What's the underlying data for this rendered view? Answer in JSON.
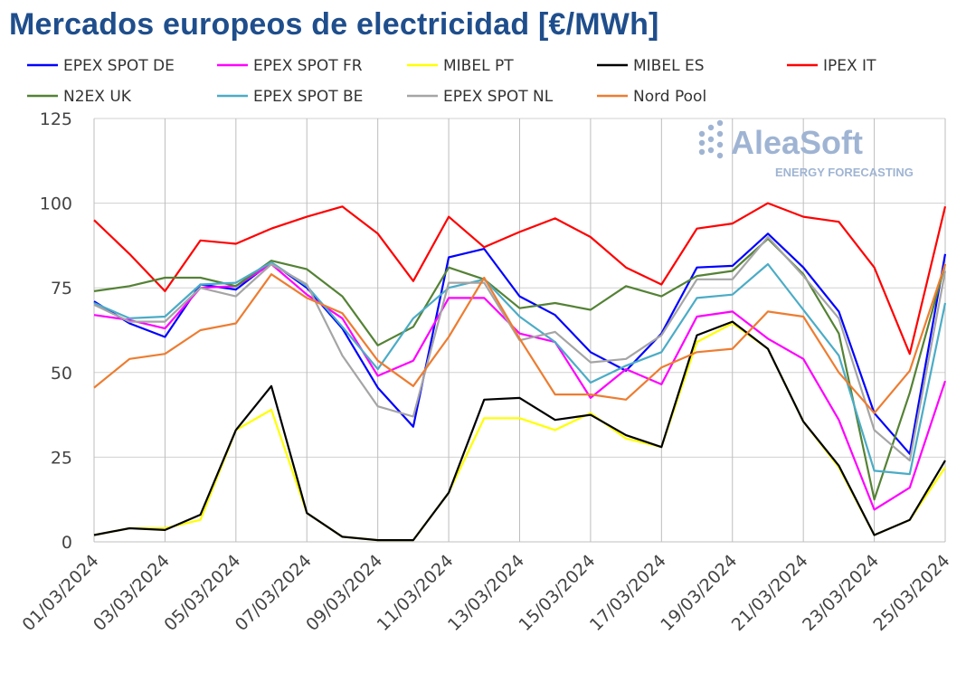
{
  "title": "Mercados europeos de electricidad [€/MWh]",
  "logo": {
    "name": "AleaSoft",
    "tagline": "ENERGY FORECASTING",
    "color": "#9fb4d3"
  },
  "chart_data": {
    "type": "line",
    "title": "Mercados europeos de electricidad [€/MWh]",
    "xlabel": "",
    "ylabel": "",
    "ylim": [
      0,
      125
    ],
    "yticks": [
      0,
      25,
      50,
      75,
      100,
      125
    ],
    "grid": true,
    "legend": "top",
    "x": [
      "01/03/2024",
      "02/03/2024",
      "03/03/2024",
      "04/03/2024",
      "05/03/2024",
      "06/03/2024",
      "07/03/2024",
      "08/03/2024",
      "09/03/2024",
      "10/03/2024",
      "11/03/2024",
      "12/03/2024",
      "13/03/2024",
      "14/03/2024",
      "15/03/2024",
      "16/03/2024",
      "17/03/2024",
      "18/03/2024",
      "19/03/2024",
      "20/03/2024",
      "21/03/2024",
      "22/03/2024",
      "23/03/2024",
      "24/03/2024",
      "25/03/2024"
    ],
    "xticks": [
      "01/03/2024",
      "03/03/2024",
      "05/03/2024",
      "07/03/2024",
      "09/03/2024",
      "11/03/2024",
      "13/03/2024",
      "15/03/2024",
      "17/03/2024",
      "19/03/2024",
      "21/03/2024",
      "23/03/2024",
      "25/03/2024"
    ],
    "series": [
      {
        "name": "EPEX SPOT DE",
        "color": "#0000ff",
        "values": [
          71,
          64.5,
          60.5,
          76,
          74.5,
          82.5,
          75,
          63,
          45.5,
          34,
          84,
          86.5,
          72.5,
          67,
          56,
          50.5,
          61.5,
          81,
          81.5,
          91,
          81,
          68,
          38,
          26,
          85
        ]
      },
      {
        "name": "EPEX SPOT FR",
        "color": "#ff00ff",
        "values": [
          67,
          65.5,
          63,
          75,
          75.5,
          82,
          73,
          66,
          49,
          53.5,
          72,
          72,
          61.5,
          59,
          42.5,
          51,
          46.5,
          66.5,
          68,
          60,
          54,
          36,
          9.5,
          16,
          47.5
        ]
      },
      {
        "name": "MIBEL PT",
        "color": "#ffff00",
        "values": [
          2,
          4,
          4,
          6.5,
          33,
          39,
          8.5,
          1.5,
          0.5,
          0.5,
          14.5,
          36.5,
          36.5,
          33,
          38,
          30.5,
          28,
          59,
          64.5,
          57,
          35.5,
          22,
          2,
          6.5,
          22
        ]
      },
      {
        "name": "MIBEL ES",
        "color": "#000000",
        "values": [
          2,
          4,
          3.5,
          8,
          33,
          46,
          8.5,
          1.5,
          0.5,
          0.5,
          14.5,
          42,
          42.5,
          36,
          37.5,
          31.5,
          28,
          61,
          65,
          57,
          35.5,
          22.5,
          2,
          6.5,
          24
        ]
      },
      {
        "name": "IPEX IT",
        "color": "#ff0000",
        "values": [
          95,
          85,
          74,
          89,
          88,
          92.5,
          96,
          99,
          91,
          77,
          96,
          87,
          91.5,
          95.5,
          90,
          81,
          76,
          92.5,
          94,
          100,
          96,
          94.5,
          81,
          55.5,
          99
        ]
      },
      {
        "name": "N2EX UK",
        "color": "#548235",
        "values": [
          74,
          75.5,
          78,
          78,
          75.5,
          83,
          80.5,
          72.5,
          58,
          63.5,
          81,
          77.5,
          69,
          70.5,
          68.5,
          75.5,
          72.5,
          78.5,
          80,
          89.5,
          79,
          61.5,
          12.5,
          44,
          82
        ]
      },
      {
        "name": "EPEX SPOT BE",
        "color": "#4bacc6",
        "values": [
          70.5,
          66,
          66.5,
          76,
          76.5,
          82.5,
          75.5,
          63.5,
          51,
          66,
          75,
          77.5,
          66.5,
          59,
          47,
          52,
          56,
          72,
          73,
          82,
          68.5,
          55,
          21,
          20,
          70.5
        ]
      },
      {
        "name": "EPEX SPOT NL",
        "color": "#a5a5a5",
        "values": [
          70,
          65,
          65,
          75,
          72.5,
          82,
          76,
          55,
          40,
          37,
          76.5,
          76.5,
          59.5,
          62,
          53,
          54,
          61,
          77.5,
          77.5,
          90,
          78.5,
          66,
          33,
          24,
          80
        ]
      },
      {
        "name": "Nord Pool",
        "color": "#ed7d31",
        "values": [
          45.5,
          54,
          55.5,
          62.5,
          64.5,
          79,
          72,
          67.5,
          53.5,
          46,
          60.5,
          78,
          60,
          43.5,
          43.5,
          42,
          51.5,
          56,
          57,
          68,
          66.5,
          50,
          38,
          50.5,
          82
        ]
      }
    ]
  }
}
